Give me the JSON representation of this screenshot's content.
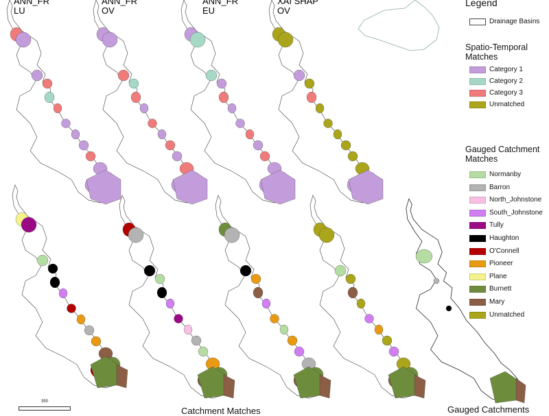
{
  "panels": {
    "top": [
      {
        "label": "ANN_FR\nLU"
      },
      {
        "label": "ANN_FR\nOV"
      },
      {
        "label": "ANN_FR\nEU"
      },
      {
        "label": "XAI SHAP\nOV"
      }
    ]
  },
  "legend": {
    "title": "Legend",
    "drainage_label": "Drainage Basins",
    "spatio_title": "Spatio-Temporal\nMatches",
    "spatio_items": [
      {
        "label": "Category 1",
        "color": "#c39ddb"
      },
      {
        "label": "Category 2",
        "color": "#a6d8c6"
      },
      {
        "label": "Category 3",
        "color": "#f07b7b"
      },
      {
        "label": "Unmatched",
        "color": "#aaa51a"
      }
    ],
    "gauged_title": "Gauged Catchment\nMatches",
    "gauged_items": [
      {
        "label": "Normanby",
        "color": "#b5dca2"
      },
      {
        "label": "Barron",
        "color": "#b3b3b3"
      },
      {
        "label": "North_Johnstone",
        "color": "#f9c0e6"
      },
      {
        "label": "South_Johnstone",
        "color": "#d07ef2"
      },
      {
        "label": "Tully",
        "color": "#9b0a86"
      },
      {
        "label": "Haughton",
        "color": "#000000"
      },
      {
        "label": "O'Connell",
        "color": "#b30000"
      },
      {
        "label": "Pioneer",
        "color": "#e89a14"
      },
      {
        "label": "Plane",
        "color": "#f3f28c"
      },
      {
        "label": "Burnett",
        "color": "#6e8d3c"
      },
      {
        "label": "Mary",
        "color": "#8c5e45"
      },
      {
        "label": "Unmatched",
        "color": "#aaa51a"
      }
    ]
  },
  "scale_bar": {
    "label": "350"
  },
  "bottom_titles": {
    "left": "Catchment Matches",
    "right": "Gauged Catchments"
  },
  "colors": {
    "outline": "#555555",
    "coast": "#222222"
  }
}
